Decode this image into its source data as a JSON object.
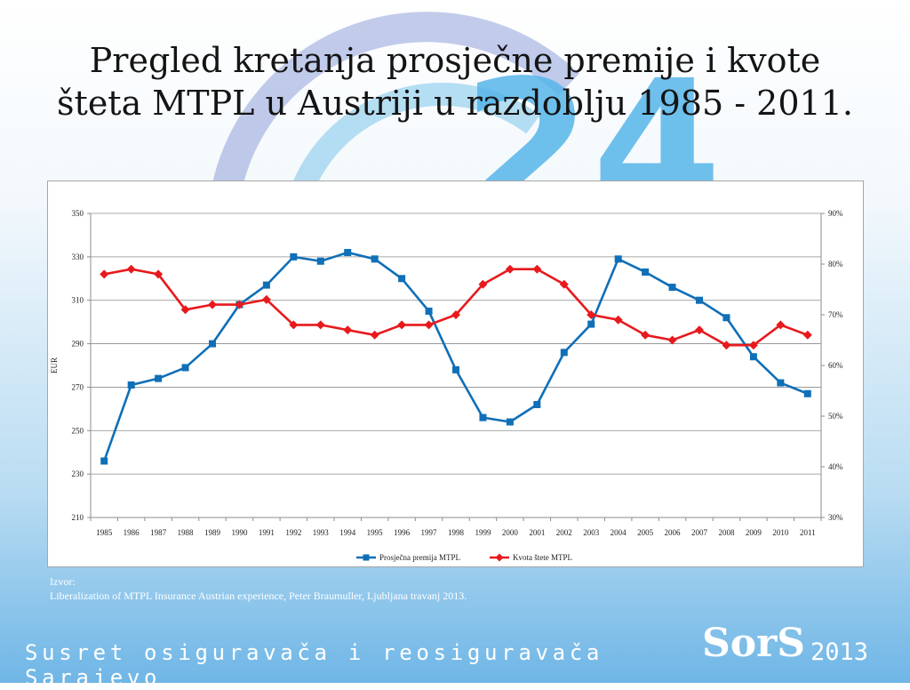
{
  "slide": {
    "title_line1": "Pregled kretanja prosječne premije i kvote",
    "title_line2": "šteta MTPL u Austriji u razdoblju 1985 - 2011.",
    "source_label": "Izvor:",
    "source_text": "Liberalization of  MTPL Insurance  Austrian experience, Peter Braumuller, Ljubljana travanj 2013.",
    "footer_text": "Susret osiguravača i reosiguravača Sarajevo",
    "brand_text": "SorS",
    "brand_year": "2013",
    "background_digits": "24"
  },
  "chart_data": {
    "type": "line",
    "title": "",
    "xlabel": "",
    "ylabel": "EUR",
    "x": [
      "1985",
      "1986",
      "1987",
      "1988",
      "1989",
      "1990",
      "1991",
      "1992",
      "1993",
      "1994",
      "1995",
      "1996",
      "1997",
      "1998",
      "1999",
      "2000",
      "2001",
      "2002",
      "2003",
      "2004",
      "2005",
      "2006",
      "2007",
      "2008",
      "2009",
      "2010",
      "2011"
    ],
    "ylim": [
      210,
      350
    ],
    "y_ticks": [
      "210",
      "230",
      "250",
      "270",
      "290",
      "310",
      "330",
      "350"
    ],
    "y2lim": [
      30,
      90
    ],
    "y2_ticks": [
      "30%",
      "40%",
      "50%",
      "60%",
      "70%",
      "80%",
      "90%"
    ],
    "grid": true,
    "legend_position": "bottom",
    "series": [
      {
        "name": "Prosječna premija MTPL",
        "axis": "left",
        "color": "#0f6fb7",
        "marker": "square",
        "values": [
          236,
          271,
          274,
          279,
          290,
          308,
          317,
          330,
          328,
          332,
          329,
          320,
          305,
          278,
          256,
          254,
          262,
          286,
          299,
          329,
          323,
          316,
          310,
          302,
          284,
          272,
          267
        ]
      },
      {
        "name": "Kvota štete MTPL",
        "axis": "right",
        "color": "#e8191d",
        "marker": "diamond",
        "values": [
          78,
          79,
          78,
          71,
          72,
          72,
          73,
          68,
          68,
          67,
          66,
          68,
          68,
          70,
          76,
          79,
          79,
          76,
          70,
          69,
          66,
          65,
          67,
          64,
          64,
          68,
          66
        ]
      }
    ]
  }
}
